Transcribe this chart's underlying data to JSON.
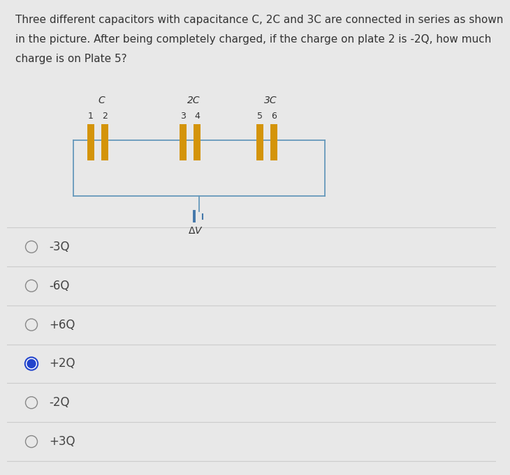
{
  "background_color": "#e8e8e8",
  "title_text_line1": "Three different capacitors with capacitance C, 2C and 3C are connected in series as shown",
  "title_text_line2": "in the picture. After being completely charged, if the charge on plate 2 is -2Q, how much",
  "title_text_line3": "charge is on Plate 5?",
  "title_fontsize": 11.0,
  "capacitor_labels": [
    "C",
    "2C",
    "3C"
  ],
  "plate_labels": [
    "1",
    "2",
    "3",
    "4",
    "5",
    "6"
  ],
  "plate_color": "#D4940A",
  "wire_color": "#6699BB",
  "wire_lw": 1.3,
  "box_color": "#6699BB",
  "voltage_color": "#4477AA",
  "options": [
    "-3Q",
    "-6Q",
    "+6Q",
    "+2Q",
    "-2Q",
    "+3Q"
  ],
  "correct_index": 3,
  "correct_fill": "#2244CC",
  "correct_ring": "#2244CC",
  "radio_ring_color": "#888888",
  "option_fontsize": 12,
  "option_text_color": "#444444",
  "separator_color": "#cccccc",
  "label_color": "#333333"
}
